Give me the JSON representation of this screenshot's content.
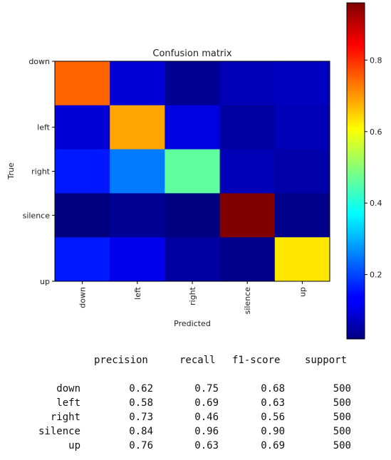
{
  "chart_data": {
    "type": "heatmap",
    "title": "Confusion matrix",
    "xlabel": "Predicted",
    "ylabel": "True",
    "x_categories": [
      "down",
      "left",
      "right",
      "silence",
      "up"
    ],
    "y_categories": [
      "down",
      "left",
      "right",
      "silence",
      "up"
    ],
    "values": [
      [
        0.75,
        0.1,
        0.04,
        0.07,
        0.08
      ],
      [
        0.1,
        0.69,
        0.11,
        0.05,
        0.07
      ],
      [
        0.16,
        0.25,
        0.46,
        0.07,
        0.06
      ],
      [
        0.02,
        0.04,
        0.02,
        0.96,
        0.03
      ],
      [
        0.16,
        0.12,
        0.05,
        0.03,
        0.63
      ]
    ],
    "colormap": "jet",
    "vmin": 0.02,
    "vmax": 0.96,
    "colorbar_ticks": [
      "0.2",
      "0.4",
      "0.6",
      "0.8"
    ],
    "colorbar_tick_values": [
      0.2,
      0.4,
      0.6,
      0.8
    ],
    "grid": false
  },
  "report": {
    "headers": [
      "precision",
      "recall",
      "f1-score",
      "support"
    ],
    "rows": [
      {
        "label": "down",
        "precision": "0.62",
        "recall": "0.75",
        "f1": "0.68",
        "support": "500"
      },
      {
        "label": "left",
        "precision": "0.58",
        "recall": "0.69",
        "f1": "0.63",
        "support": "500"
      },
      {
        "label": "right",
        "precision": "0.73",
        "recall": "0.46",
        "f1": "0.56",
        "support": "500"
      },
      {
        "label": "silence",
        "precision": "0.84",
        "recall": "0.96",
        "f1": "0.90",
        "support": "500"
      },
      {
        "label": "up",
        "precision": "0.76",
        "recall": "0.63",
        "f1": "0.69",
        "support": "500"
      }
    ]
  }
}
